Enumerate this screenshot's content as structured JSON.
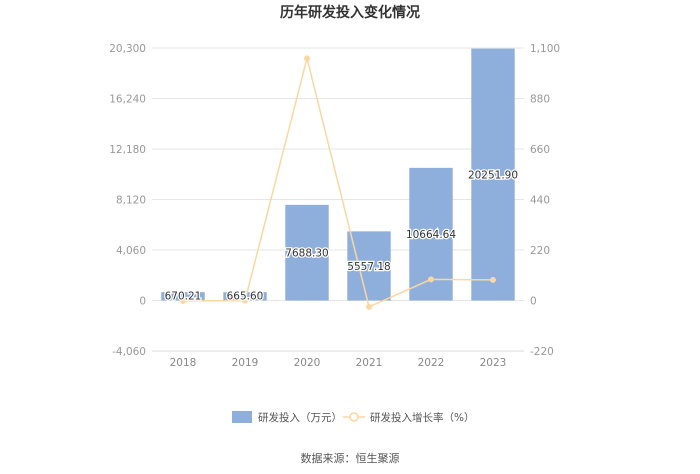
{
  "chart_data": {
    "type": "bar",
    "title": "历年研发投入变化情况",
    "categories": [
      "2018",
      "2019",
      "2020",
      "2021",
      "2022",
      "2023"
    ],
    "series": [
      {
        "name": "研发投入（万元）",
        "type": "bar",
        "axis": "left",
        "values": [
          670.21,
          665.6,
          7688.3,
          5557.18,
          10664.64,
          20251.9
        ],
        "labels": [
          "670.21",
          "665.60",
          "7688.30",
          "5557.18",
          "10664.64",
          "20251.90"
        ],
        "color": "#8eaedc"
      },
      {
        "name": "研发投入增长率（%）",
        "type": "line",
        "axis": "right",
        "values": [
          -1.5,
          -0.7,
          1055,
          -27.7,
          91.9,
          89.9
        ],
        "color": "#fad7a0"
      }
    ],
    "yleft": {
      "ylim": [
        -4060,
        20300
      ],
      "ticks": [
        -4060,
        0,
        4060,
        8120,
        12180,
        16240,
        20300
      ],
      "tick_labels": [
        "-4,060",
        "0",
        "4,060",
        "8,120",
        "12,180",
        "16,240",
        "20,300"
      ]
    },
    "yright": {
      "ylim": [
        -220,
        1100
      ],
      "ticks": [
        -220,
        0,
        220,
        440,
        660,
        880,
        1100
      ],
      "tick_labels": [
        "-220",
        "0",
        "220",
        "440",
        "660",
        "880",
        "1,100"
      ]
    },
    "grid": true,
    "legend_position": "bottom",
    "source": "数据来源：恒生聚源"
  }
}
